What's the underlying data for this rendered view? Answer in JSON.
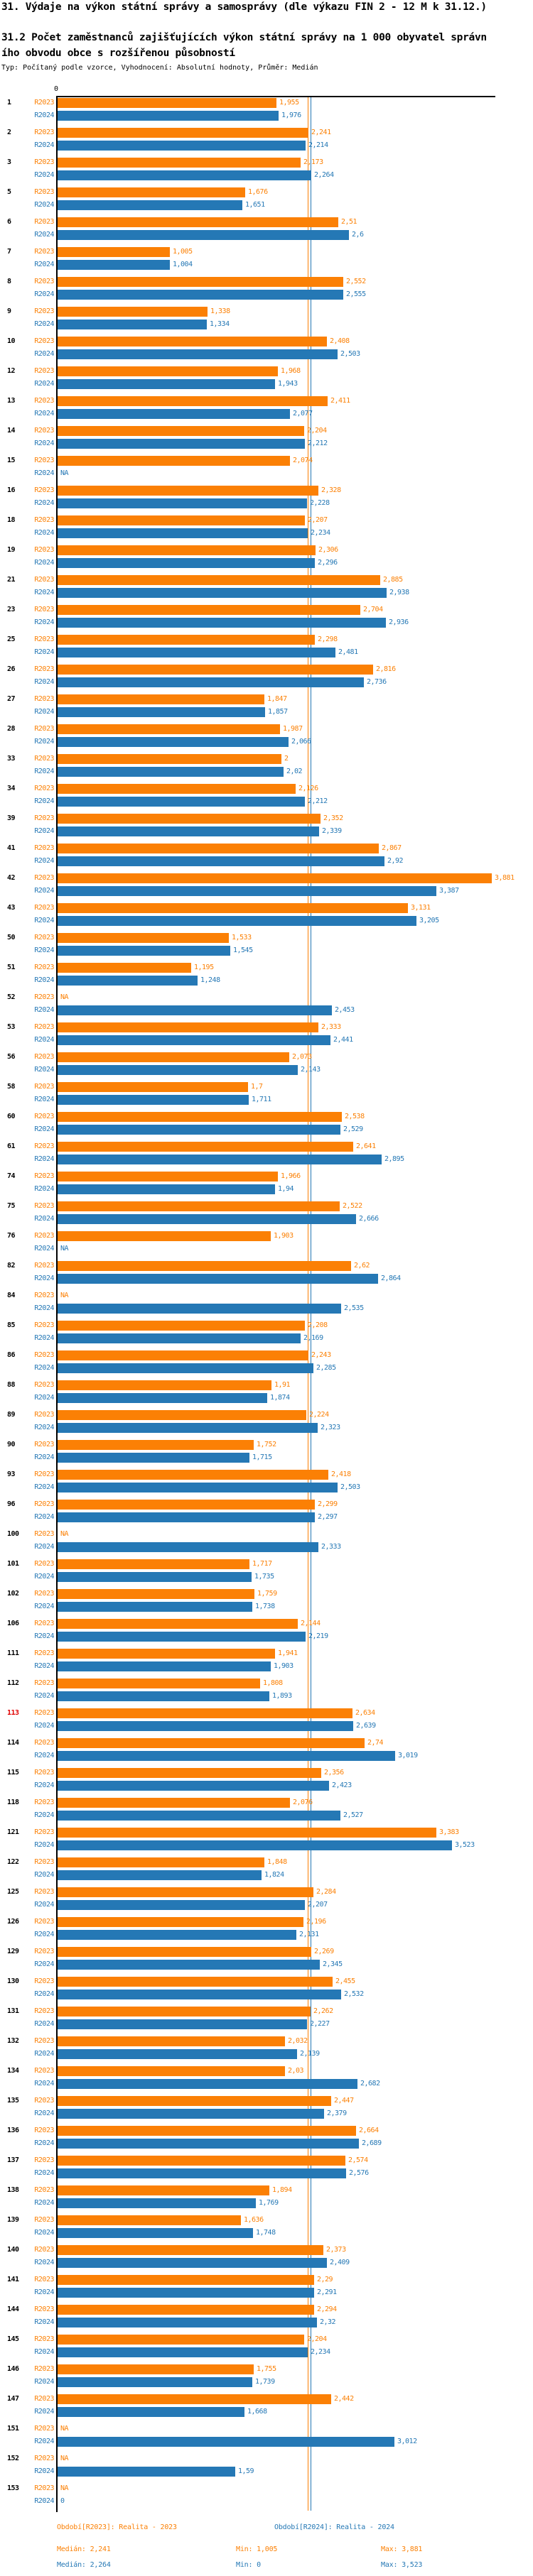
{
  "header": {
    "title": "31. Výdaje na výkon státní správy a samosprávy (dle výkazu FIN 2 - 12 M k 31.12.)",
    "subtitle_line1": "31.2 Počet zaměstnanců zajišťujících výkon státní správy na 1 000 obyvatel správn",
    "subtitle_line2": "ího obvodu obce s rozšířenou působností",
    "meta": "Typ: Počítaný podle vzorce, Vyhodnocení: Absolutní hodnoty, Průměr: Medián"
  },
  "legend": {
    "r2023": "Období[R2023]: Realita - 2023",
    "r2024": "Období[R2024]: Realita - 2024"
  },
  "stats": {
    "r2023": {
      "median": "Medián: 2,241",
      "min": "Min: 1,005",
      "max": "Max: 3,881"
    },
    "r2024": {
      "median": "Medián: 2,264",
      "min": "Min: 0",
      "max": "Max: 3,523"
    }
  },
  "colors": {
    "r2023": "#FB8005",
    "r2024": "#2578B5",
    "highlight": "#E00000",
    "axis": "#000000"
  },
  "chart_data": {
    "type": "bar",
    "orientation": "horizontal",
    "series_names": [
      "R2023",
      "R2024"
    ],
    "x_axis": {
      "zero_label": "0",
      "min": 0
    },
    "medians": {
      "R2023": 2.241,
      "R2024": 2.264
    },
    "value_format": "czech decimal comma",
    "na_label": "NA",
    "highlighted_row_id": "113",
    "rows": [
      {
        "id": "1",
        "R2023": "1,955",
        "R2024": "1,976"
      },
      {
        "id": "2",
        "R2023": "2,241",
        "R2024": "2,214"
      },
      {
        "id": "3",
        "R2023": "2,173",
        "R2024": "2,264"
      },
      {
        "id": "5",
        "R2023": "1,676",
        "R2024": "1,651"
      },
      {
        "id": "6",
        "R2023": "2,51",
        "R2024": "2,6"
      },
      {
        "id": "7",
        "R2023": "1,005",
        "R2024": "1,004"
      },
      {
        "id": "8",
        "R2023": "2,552",
        "R2024": "2,555"
      },
      {
        "id": "9",
        "R2023": "1,338",
        "R2024": "1,334"
      },
      {
        "id": "10",
        "R2023": "2,408",
        "R2024": "2,503"
      },
      {
        "id": "12",
        "R2023": "1,968",
        "R2024": "1,943"
      },
      {
        "id": "13",
        "R2023": "2,411",
        "R2024": "2,077"
      },
      {
        "id": "14",
        "R2023": "2,204",
        "R2024": "2,212"
      },
      {
        "id": "15",
        "R2023": "2,074",
        "R2024": "NA"
      },
      {
        "id": "16",
        "R2023": "2,328",
        "R2024": "2,228"
      },
      {
        "id": "18",
        "R2023": "2,207",
        "R2024": "2,234"
      },
      {
        "id": "19",
        "R2023": "2,306",
        "R2024": "2,296"
      },
      {
        "id": "21",
        "R2023": "2,885",
        "R2024": "2,938"
      },
      {
        "id": "23",
        "R2023": "2,704",
        "R2024": "2,936"
      },
      {
        "id": "25",
        "R2023": "2,298",
        "R2024": "2,481"
      },
      {
        "id": "26",
        "R2023": "2,816",
        "R2024": "2,736"
      },
      {
        "id": "27",
        "R2023": "1,847",
        "R2024": "1,857"
      },
      {
        "id": "28",
        "R2023": "1,987",
        "R2024": "2,066"
      },
      {
        "id": "33",
        "R2023": "2",
        "R2024": "2,02"
      },
      {
        "id": "34",
        "R2023": "2,126",
        "R2024": "2,212"
      },
      {
        "id": "39",
        "R2023": "2,352",
        "R2024": "2,339"
      },
      {
        "id": "41",
        "R2023": "2,867",
        "R2024": "2,92"
      },
      {
        "id": "42",
        "R2023": "3,881",
        "R2024": "3,387"
      },
      {
        "id": "43",
        "R2023": "3,131",
        "R2024": "3,205"
      },
      {
        "id": "50",
        "R2023": "1,533",
        "R2024": "1,545"
      },
      {
        "id": "51",
        "R2023": "1,195",
        "R2024": "1,248"
      },
      {
        "id": "52",
        "R2023": "NA",
        "R2024": "2,453"
      },
      {
        "id": "53",
        "R2023": "2,333",
        "R2024": "2,441"
      },
      {
        "id": "56",
        "R2023": "2,073",
        "R2024": "2,143"
      },
      {
        "id": "58",
        "R2023": "1,7",
        "R2024": "1,711"
      },
      {
        "id": "60",
        "R2023": "2,538",
        "R2024": "2,529"
      },
      {
        "id": "61",
        "R2023": "2,641",
        "R2024": "2,895"
      },
      {
        "id": "74",
        "R2023": "1,966",
        "R2024": "1,94"
      },
      {
        "id": "75",
        "R2023": "2,522",
        "R2024": "2,666"
      },
      {
        "id": "76",
        "R2023": "1,903",
        "R2024": "NA"
      },
      {
        "id": "82",
        "R2023": "2,62",
        "R2024": "2,864"
      },
      {
        "id": "84",
        "R2023": "NA",
        "R2024": "2,535"
      },
      {
        "id": "85",
        "R2023": "2,208",
        "R2024": "2,169"
      },
      {
        "id": "86",
        "R2023": "2,243",
        "R2024": "2,285"
      },
      {
        "id": "88",
        "R2023": "1,91",
        "R2024": "1,874"
      },
      {
        "id": "89",
        "R2023": "2,224",
        "R2024": "2,323"
      },
      {
        "id": "90",
        "R2023": "1,752",
        "R2024": "1,715"
      },
      {
        "id": "93",
        "R2023": "2,418",
        "R2024": "2,503"
      },
      {
        "id": "96",
        "R2023": "2,299",
        "R2024": "2,297"
      },
      {
        "id": "100",
        "R2023": "NA",
        "R2024": "2,333"
      },
      {
        "id": "101",
        "R2023": "1,717",
        "R2024": "1,735"
      },
      {
        "id": "102",
        "R2023": "1,759",
        "R2024": "1,738"
      },
      {
        "id": "106",
        "R2023": "2,144",
        "R2024": "2,219"
      },
      {
        "id": "111",
        "R2023": "1,941",
        "R2024": "1,903"
      },
      {
        "id": "112",
        "R2023": "1,808",
        "R2024": "1,893"
      },
      {
        "id": "113",
        "R2023": "2,634",
        "R2024": "2,639"
      },
      {
        "id": "114",
        "R2023": "2,74",
        "R2024": "3,019"
      },
      {
        "id": "115",
        "R2023": "2,356",
        "R2024": "2,423"
      },
      {
        "id": "118",
        "R2023": "2,076",
        "R2024": "2,527"
      },
      {
        "id": "121",
        "R2023": "3,383",
        "R2024": "3,523"
      },
      {
        "id": "122",
        "R2023": "1,848",
        "R2024": "1,824"
      },
      {
        "id": "125",
        "R2023": "2,284",
        "R2024": "2,207"
      },
      {
        "id": "126",
        "R2023": "2,196",
        "R2024": "2,131"
      },
      {
        "id": "129",
        "R2023": "2,269",
        "R2024": "2,345"
      },
      {
        "id": "130",
        "R2023": "2,455",
        "R2024": "2,532"
      },
      {
        "id": "131",
        "R2023": "2,262",
        "R2024": "2,227"
      },
      {
        "id": "132",
        "R2023": "2,032",
        "R2024": "2,139"
      },
      {
        "id": "134",
        "R2023": "2,03",
        "R2024": "2,682"
      },
      {
        "id": "135",
        "R2023": "2,447",
        "R2024": "2,379"
      },
      {
        "id": "136",
        "R2023": "2,664",
        "R2024": "2,689"
      },
      {
        "id": "137",
        "R2023": "2,574",
        "R2024": "2,576"
      },
      {
        "id": "138",
        "R2023": "1,894",
        "R2024": "1,769"
      },
      {
        "id": "139",
        "R2023": "1,636",
        "R2024": "1,748"
      },
      {
        "id": "140",
        "R2023": "2,373",
        "R2024": "2,409"
      },
      {
        "id": "141",
        "R2023": "2,29",
        "R2024": "2,291"
      },
      {
        "id": "144",
        "R2023": "2,294",
        "R2024": "2,32"
      },
      {
        "id": "145",
        "R2023": "2,204",
        "R2024": "2,234"
      },
      {
        "id": "146",
        "R2023": "1,755",
        "R2024": "1,739"
      },
      {
        "id": "147",
        "R2023": "2,442",
        "R2024": "1,668"
      },
      {
        "id": "151",
        "R2023": "NA",
        "R2024": "3,012"
      },
      {
        "id": "152",
        "R2023": "NA",
        "R2024": "1,59"
      },
      {
        "id": "153",
        "R2023": "NA",
        "R2024": "0"
      }
    ]
  }
}
